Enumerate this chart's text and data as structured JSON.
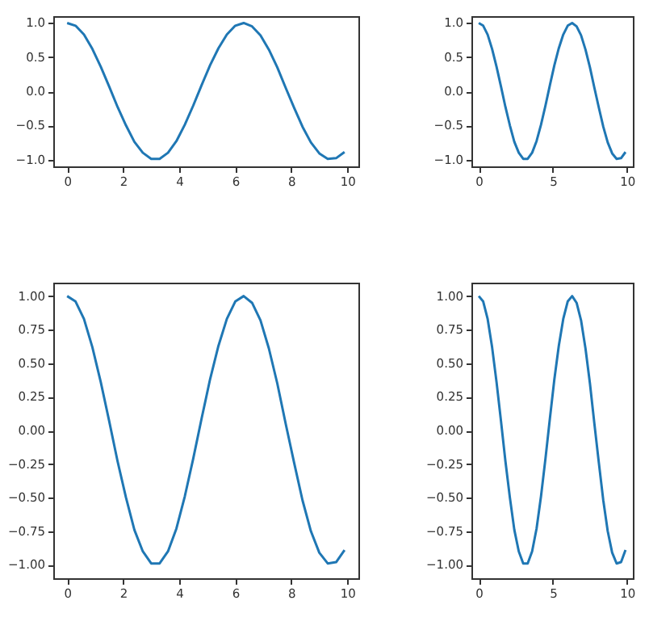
{
  "chart_data": [
    {
      "type": "line",
      "x": [
        0,
        0.3,
        0.6,
        0.9,
        1.2,
        1.5,
        1.8,
        2.1,
        2.4,
        2.7,
        3.0,
        3.3,
        3.6,
        3.9,
        4.2,
        4.5,
        4.8,
        5.1,
        5.4,
        5.7,
        6.0,
        6.3,
        6.6,
        6.9,
        7.2,
        7.5,
        7.8,
        8.1,
        8.4,
        8.7,
        9.0,
        9.3,
        9.6,
        9.9
      ],
      "values": [
        1,
        0.96,
        0.83,
        0.62,
        0.36,
        0.07,
        -0.23,
        -0.5,
        -0.74,
        -0.9,
        -0.99,
        -0.99,
        -0.9,
        -0.73,
        -0.49,
        -0.21,
        0.09,
        0.38,
        0.63,
        0.83,
        0.96,
        1.0,
        0.95,
        0.82,
        0.61,
        0.35,
        0.05,
        -0.24,
        -0.52,
        -0.75,
        -0.91,
        -0.99,
        -0.98,
        -0.89
      ],
      "color": "#1f77b4",
      "xlim": [
        -0.495,
        10.395
      ],
      "xticks": [
        0,
        2,
        4,
        6,
        8,
        10
      ],
      "ylim": [
        -1.1,
        1.1
      ],
      "yticks": [
        {
          "value": -1,
          "label": "−1.0"
        },
        {
          "value": -0.5,
          "label": "−0.5"
        },
        {
          "value": 0,
          "label": "0.0"
        },
        {
          "value": 0.5,
          "label": "0.5"
        },
        {
          "value": 1,
          "label": "1.0"
        }
      ]
    },
    {
      "type": "line",
      "x": [
        0,
        0.3,
        0.6,
        0.9,
        1.2,
        1.5,
        1.8,
        2.1,
        2.4,
        2.7,
        3.0,
        3.3,
        3.6,
        3.9,
        4.2,
        4.5,
        4.8,
        5.1,
        5.4,
        5.7,
        6.0,
        6.3,
        6.6,
        6.9,
        7.2,
        7.5,
        7.8,
        8.1,
        8.4,
        8.7,
        9.0,
        9.3,
        9.6,
        9.9
      ],
      "values": [
        1,
        0.96,
        0.83,
        0.62,
        0.36,
        0.07,
        -0.23,
        -0.5,
        -0.74,
        -0.9,
        -0.99,
        -0.99,
        -0.9,
        -0.73,
        -0.49,
        -0.21,
        0.09,
        0.38,
        0.63,
        0.83,
        0.96,
        1.0,
        0.95,
        0.82,
        0.61,
        0.35,
        0.05,
        -0.24,
        -0.52,
        -0.75,
        -0.91,
        -0.99,
        -0.98,
        -0.89
      ],
      "color": "#1f77b4",
      "xlim": [
        -0.495,
        10.395
      ],
      "xticks": [
        0,
        5,
        10
      ],
      "ylim": [
        -1.1,
        1.1
      ],
      "yticks": [
        {
          "value": -1,
          "label": "−1.0"
        },
        {
          "value": -0.5,
          "label": "−0.5"
        },
        {
          "value": 0,
          "label": "0.0"
        },
        {
          "value": 0.5,
          "label": "0.5"
        },
        {
          "value": 1,
          "label": "1.0"
        }
      ]
    },
    {
      "type": "line",
      "x": [
        0,
        0.3,
        0.6,
        0.9,
        1.2,
        1.5,
        1.8,
        2.1,
        2.4,
        2.7,
        3.0,
        3.3,
        3.6,
        3.9,
        4.2,
        4.5,
        4.8,
        5.1,
        5.4,
        5.7,
        6.0,
        6.3,
        6.6,
        6.9,
        7.2,
        7.5,
        7.8,
        8.1,
        8.4,
        8.7,
        9.0,
        9.3,
        9.6,
        9.9
      ],
      "values": [
        1,
        0.96,
        0.83,
        0.62,
        0.36,
        0.07,
        -0.23,
        -0.5,
        -0.74,
        -0.9,
        -0.99,
        -0.99,
        -0.9,
        -0.73,
        -0.49,
        -0.21,
        0.09,
        0.38,
        0.63,
        0.83,
        0.96,
        1.0,
        0.95,
        0.82,
        0.61,
        0.35,
        0.05,
        -0.24,
        -0.52,
        -0.75,
        -0.91,
        -0.99,
        -0.98,
        -0.89
      ],
      "color": "#1f77b4",
      "xlim": [
        -0.495,
        10.395
      ],
      "xticks": [
        0,
        2,
        4,
        6,
        8,
        10
      ],
      "ylim": [
        -1.1,
        1.1
      ],
      "yticks": [
        {
          "value": -1,
          "label": "−1.00"
        },
        {
          "value": -0.75,
          "label": "−0.75"
        },
        {
          "value": -0.5,
          "label": "−0.50"
        },
        {
          "value": -0.25,
          "label": "−0.25"
        },
        {
          "value": 0,
          "label": "0.00"
        },
        {
          "value": 0.25,
          "label": "0.25"
        },
        {
          "value": 0.5,
          "label": "0.50"
        },
        {
          "value": 0.75,
          "label": "0.75"
        },
        {
          "value": 1,
          "label": "1.00"
        }
      ]
    },
    {
      "type": "line",
      "x": [
        0,
        0.3,
        0.6,
        0.9,
        1.2,
        1.5,
        1.8,
        2.1,
        2.4,
        2.7,
        3.0,
        3.3,
        3.6,
        3.9,
        4.2,
        4.5,
        4.8,
        5.1,
        5.4,
        5.7,
        6.0,
        6.3,
        6.6,
        6.9,
        7.2,
        7.5,
        7.8,
        8.1,
        8.4,
        8.7,
        9.0,
        9.3,
        9.6,
        9.9
      ],
      "values": [
        1,
        0.96,
        0.83,
        0.62,
        0.36,
        0.07,
        -0.23,
        -0.5,
        -0.74,
        -0.9,
        -0.99,
        -0.99,
        -0.9,
        -0.73,
        -0.49,
        -0.21,
        0.09,
        0.38,
        0.63,
        0.83,
        0.96,
        1.0,
        0.95,
        0.82,
        0.61,
        0.35,
        0.05,
        -0.24,
        -0.52,
        -0.75,
        -0.91,
        -0.99,
        -0.98,
        -0.89
      ],
      "color": "#1f77b4",
      "xlim": [
        -0.495,
        10.395
      ],
      "xticks": [
        0,
        5,
        10
      ],
      "ylim": [
        -1.1,
        1.1
      ],
      "yticks": [
        {
          "value": -1,
          "label": "−1.00"
        },
        {
          "value": -0.75,
          "label": "−0.75"
        },
        {
          "value": -0.5,
          "label": "−0.50"
        },
        {
          "value": -0.25,
          "label": "−0.25"
        },
        {
          "value": 0,
          "label": "0.00"
        },
        {
          "value": 0.25,
          "label": "0.25"
        },
        {
          "value": 0.5,
          "label": "0.50"
        },
        {
          "value": 0.75,
          "label": "0.75"
        },
        {
          "value": 1,
          "label": "1.00"
        }
      ]
    }
  ]
}
